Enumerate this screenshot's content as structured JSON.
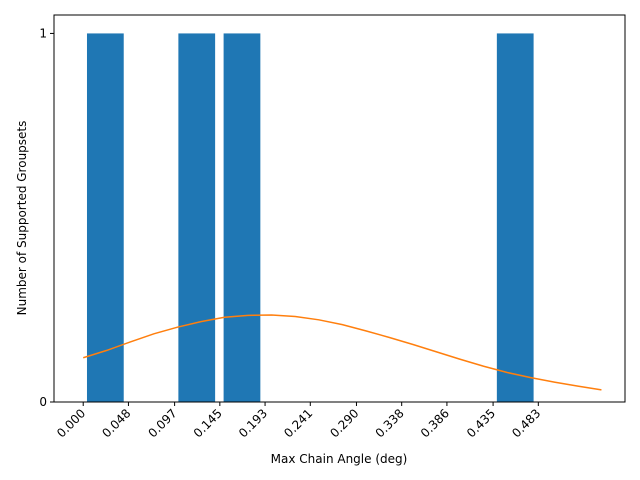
{
  "chart_data": {
    "type": "bar",
    "xlabel": "Max Chain Angle (deg)",
    "ylabel": "Number of Supported Groupsets",
    "x_range": [
      -0.031,
      0.575
    ],
    "y_range": [
      0,
      1.05
    ],
    "x_ticks": [
      {
        "value": 0.0,
        "label": "0.000"
      },
      {
        "value": 0.048,
        "label": "0.048"
      },
      {
        "value": 0.097,
        "label": "0.097"
      },
      {
        "value": 0.145,
        "label": "0.145"
      },
      {
        "value": 0.193,
        "label": "0.193"
      },
      {
        "value": 0.241,
        "label": "0.241"
      },
      {
        "value": 0.29,
        "label": "0.290"
      },
      {
        "value": 0.338,
        "label": "0.338"
      },
      {
        "value": 0.386,
        "label": "0.386"
      },
      {
        "value": 0.435,
        "label": "0.435"
      },
      {
        "value": 0.483,
        "label": "0.483"
      }
    ],
    "y_ticks": [
      {
        "value": 0,
        "label": "0"
      },
      {
        "value": 1,
        "label": "1"
      }
    ],
    "bars": [
      {
        "x0": 0.004,
        "x1": 0.043,
        "value": 1
      },
      {
        "x0": 0.101,
        "x1": 0.14,
        "value": 1
      },
      {
        "x0": 0.149,
        "x1": 0.188,
        "value": 1
      },
      {
        "x0": 0.439,
        "x1": 0.478,
        "value": 1
      }
    ],
    "curve": {
      "x": [
        0.0,
        0.025,
        0.05,
        0.075,
        0.1,
        0.125,
        0.15,
        0.175,
        0.2,
        0.225,
        0.25,
        0.275,
        0.3,
        0.325,
        0.35,
        0.375,
        0.4,
        0.425,
        0.45,
        0.475,
        0.5,
        0.525,
        0.55
      ],
      "y": [
        0.12,
        0.14,
        0.163,
        0.185,
        0.203,
        0.218,
        0.23,
        0.235,
        0.236,
        0.232,
        0.223,
        0.21,
        0.193,
        0.175,
        0.156,
        0.136,
        0.116,
        0.097,
        0.08,
        0.066,
        0.054,
        0.043,
        0.033
      ]
    },
    "bar_color": "#1f77b4",
    "curve_color": "#ff7f0e",
    "grid": false
  }
}
